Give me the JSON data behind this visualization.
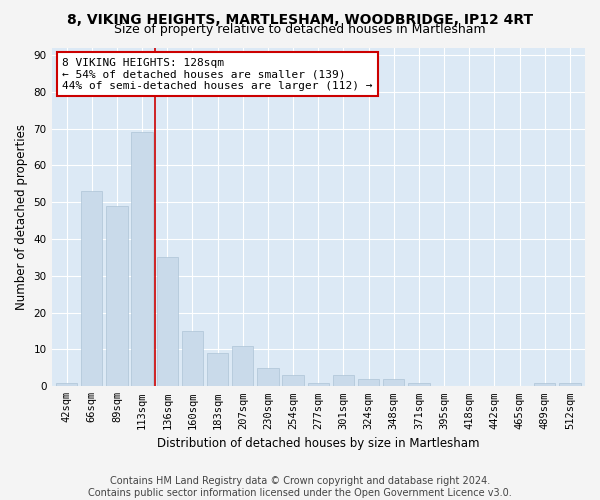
{
  "title_line1": "8, VIKING HEIGHTS, MARTLESHAM, WOODBRIDGE, IP12 4RT",
  "title_line2": "Size of property relative to detached houses in Martlesham",
  "xlabel": "Distribution of detached houses by size in Martlesham",
  "ylabel": "Number of detached properties",
  "bar_color": "#c9daea",
  "bar_edge_color": "#aec4d6",
  "background_color": "#dce9f5",
  "grid_color": "#ffffff",
  "vline_color": "#cc0000",
  "vline_x_index": 4,
  "annotation_text": "8 VIKING HEIGHTS: 128sqm\n← 54% of detached houses are smaller (139)\n44% of semi-detached houses are larger (112) →",
  "annotation_box_facecolor": "#ffffff",
  "annotation_box_edgecolor": "#cc0000",
  "categories": [
    "42sqm",
    "66sqm",
    "89sqm",
    "113sqm",
    "136sqm",
    "160sqm",
    "183sqm",
    "207sqm",
    "230sqm",
    "254sqm",
    "277sqm",
    "301sqm",
    "324sqm",
    "348sqm",
    "371sqm",
    "395sqm",
    "418sqm",
    "442sqm",
    "465sqm",
    "489sqm",
    "512sqm"
  ],
  "bar_heights": [
    1,
    53,
    49,
    69,
    35,
    15,
    9,
    11,
    5,
    3,
    1,
    3,
    2,
    2,
    1,
    0,
    0,
    0,
    0,
    1,
    1
  ],
  "ylim": [
    0,
    92
  ],
  "yticks": [
    0,
    10,
    20,
    30,
    40,
    50,
    60,
    70,
    80,
    90
  ],
  "footer_line1": "Contains HM Land Registry data © Crown copyright and database right 2024.",
  "footer_line2": "Contains public sector information licensed under the Open Government Licence v3.0.",
  "fig_facecolor": "#f4f4f4",
  "title_fontsize": 10,
  "subtitle_fontsize": 9,
  "axis_label_fontsize": 8.5,
  "tick_fontsize": 7.5,
  "annotation_fontsize": 8,
  "footer_fontsize": 7
}
